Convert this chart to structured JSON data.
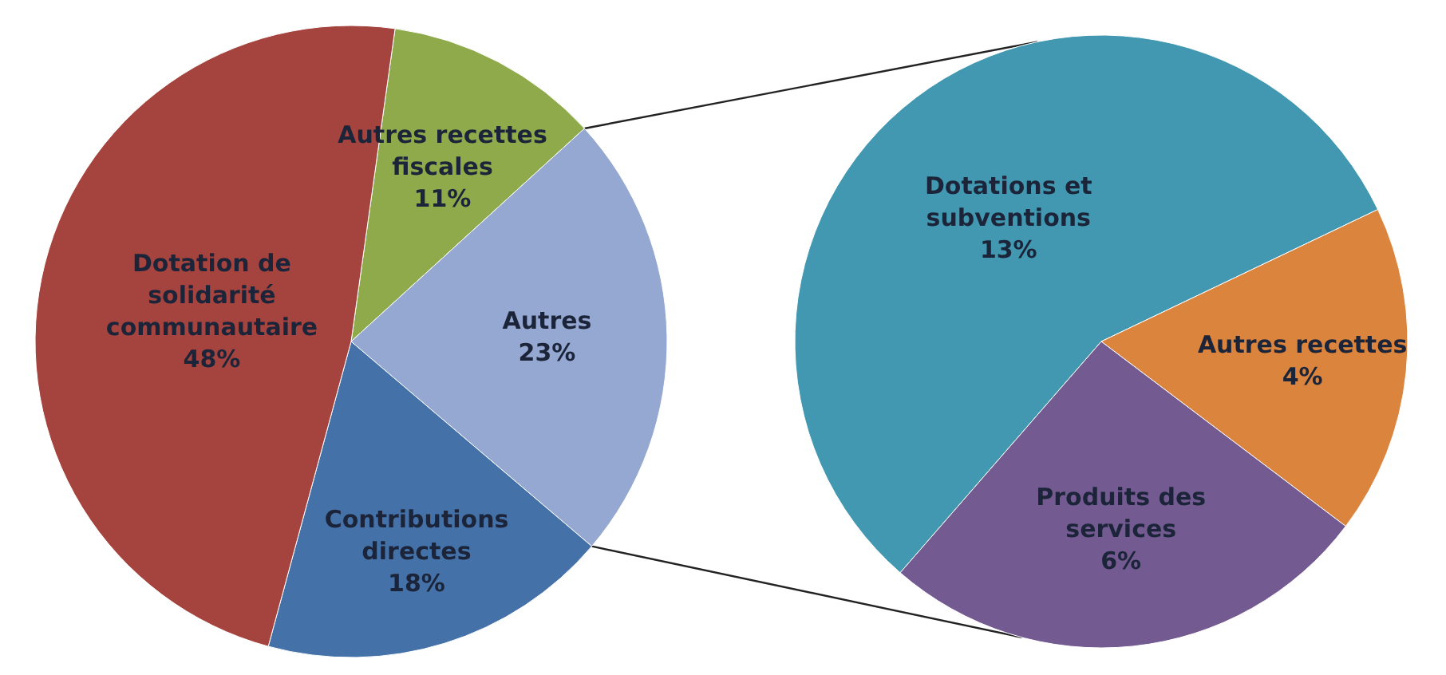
{
  "chart_data": [
    {
      "type": "pie",
      "categories": [
        "Autres recettes fiscales",
        "Autres",
        "Contributions directes",
        "Dotation de solidarité communautaire"
      ],
      "values": [
        11,
        23,
        18,
        48
      ],
      "colors": [
        "#8faa4b",
        "#95a8d2",
        "#4472a8",
        "#a5443f"
      ],
      "value_labels": [
        "11%",
        "23%",
        "18%",
        "48%"
      ]
    },
    {
      "type": "pie",
      "categories": [
        "Dotations et subventions",
        "Autres recettes",
        "Produits des services"
      ],
      "values": [
        13,
        4,
        6
      ],
      "colors": [
        "#4198b0",
        "#db843d",
        "#735b91"
      ],
      "value_labels": [
        "13%",
        "4%",
        "6%"
      ]
    }
  ]
}
